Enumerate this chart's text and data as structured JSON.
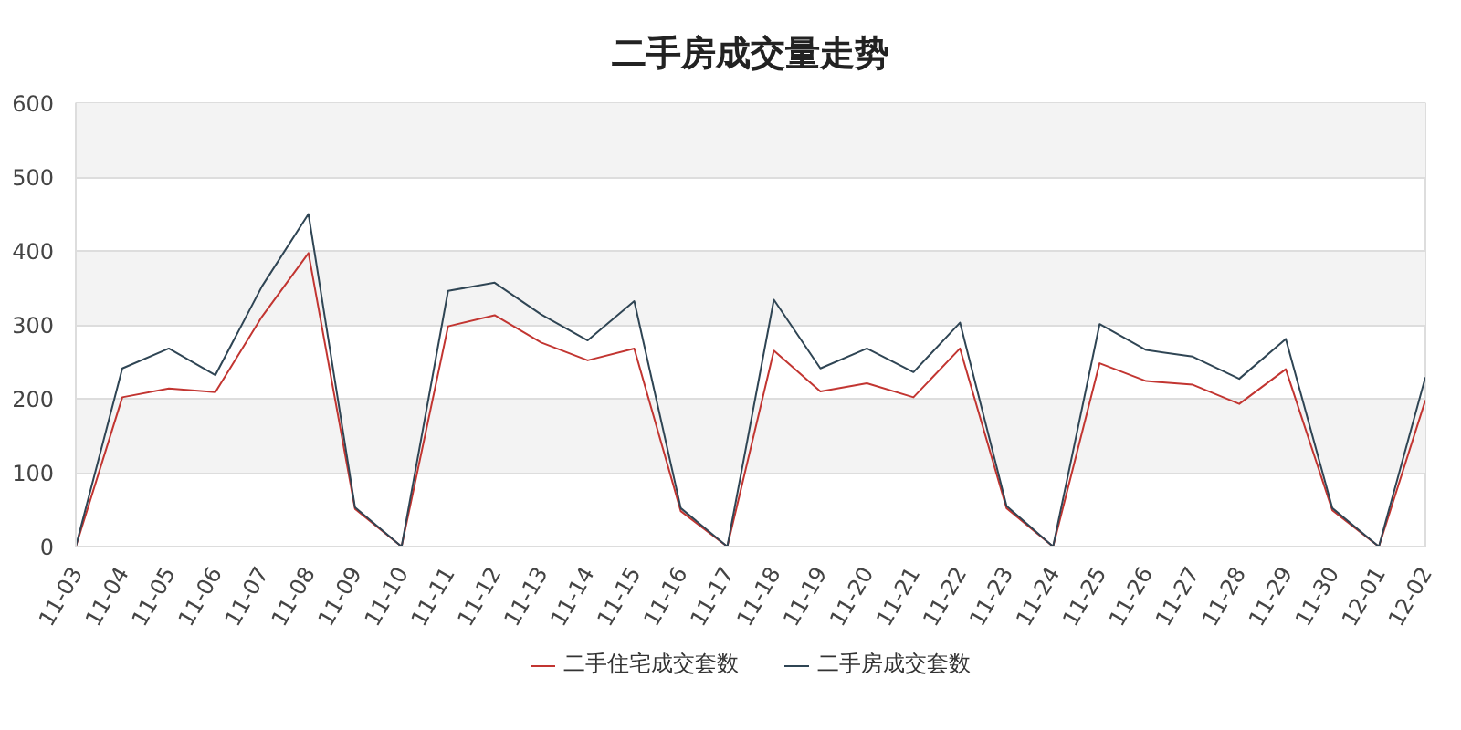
{
  "chart_data": {
    "type": "line",
    "title": "二手房成交量走势",
    "categories": [
      "11-03",
      "11-04",
      "11-05",
      "11-06",
      "11-07",
      "11-08",
      "11-09",
      "11-10",
      "11-11",
      "11-12",
      "11-13",
      "11-14",
      "11-15",
      "11-16",
      "11-17",
      "11-18",
      "11-19",
      "11-20",
      "11-21",
      "11-22",
      "11-23",
      "11-24",
      "11-25",
      "11-26",
      "11-27",
      "11-28",
      "11-29",
      "11-30",
      "12-01",
      "12-02"
    ],
    "series": [
      {
        "name": "二手住宅成交套数",
        "color": "#c23531",
        "values": [
          0,
          202,
          214,
          209,
          311,
          397,
          51,
          0,
          298,
          313,
          276,
          252,
          268,
          48,
          0,
          265,
          210,
          221,
          202,
          268,
          52,
          0,
          248,
          224,
          219,
          193,
          240,
          49,
          0,
          198
        ]
      },
      {
        "name": "二手房成交套数",
        "color": "#2f4554",
        "values": [
          0,
          241,
          268,
          232,
          352,
          450,
          53,
          0,
          346,
          357,
          314,
          279,
          332,
          52,
          0,
          334,
          241,
          268,
          236,
          303,
          55,
          0,
          301,
          266,
          257,
          227,
          281,
          52,
          0,
          229
        ]
      }
    ],
    "ylim": [
      0,
      600
    ],
    "yticks": [
      0,
      100,
      200,
      300,
      400,
      500,
      600
    ],
    "grid": "y",
    "legend": "bottom"
  }
}
